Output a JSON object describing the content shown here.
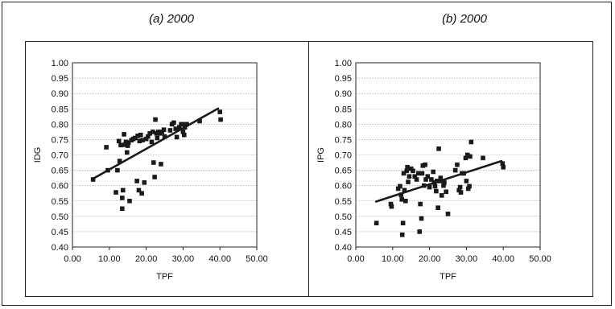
{
  "chart_data": [
    {
      "type": "scatter",
      "title": "(a) 2000",
      "xlabel": "TPF",
      "ylabel": "IDG",
      "xlim": [
        0,
        50
      ],
      "ylim": [
        0.4,
        1.0
      ],
      "xticks": [
        "0.00",
        "10.00",
        "20.00",
        "30.00",
        "40.00",
        "50.00"
      ],
      "yticks": [
        "0.40",
        "0.45",
        "0.50",
        "0.55",
        "0.60",
        "0.65",
        "0.70",
        "0.75",
        "0.80",
        "0.85",
        "0.90",
        "0.95",
        "1.00"
      ],
      "grid": "horizontal",
      "trendline": {
        "x": [
          5.5,
          39.5
        ],
        "y": [
          0.622,
          0.851
        ]
      },
      "points": [
        [
          5.6,
          0.62
        ],
        [
          9.2,
          0.725
        ],
        [
          9.6,
          0.65
        ],
        [
          11.8,
          0.578
        ],
        [
          12.2,
          0.65
        ],
        [
          12.6,
          0.745
        ],
        [
          12.8,
          0.68
        ],
        [
          13.1,
          0.732
        ],
        [
          13.5,
          0.56
        ],
        [
          13.7,
          0.585
        ],
        [
          13.5,
          0.525
        ],
        [
          14.0,
          0.767
        ],
        [
          14.2,
          0.733
        ],
        [
          14.5,
          0.742
        ],
        [
          14.8,
          0.708
        ],
        [
          15.0,
          0.73
        ],
        [
          15.2,
          0.74
        ],
        [
          15.5,
          0.55
        ],
        [
          16.0,
          0.748
        ],
        [
          16.5,
          0.752
        ],
        [
          17.0,
          0.755
        ],
        [
          17.5,
          0.615
        ],
        [
          17.7,
          0.762
        ],
        [
          18.0,
          0.585
        ],
        [
          18.2,
          0.745
        ],
        [
          18.5,
          0.765
        ],
        [
          18.8,
          0.575
        ],
        [
          19.0,
          0.748
        ],
        [
          19.5,
          0.61
        ],
        [
          20.0,
          0.752
        ],
        [
          20.5,
          0.76
        ],
        [
          21.0,
          0.77
        ],
        [
          21.5,
          0.742
        ],
        [
          21.8,
          0.775
        ],
        [
          22.0,
          0.675
        ],
        [
          22.3,
          0.628
        ],
        [
          22.5,
          0.815
        ],
        [
          22.8,
          0.77
        ],
        [
          23.0,
          0.755
        ],
        [
          23.3,
          0.775
        ],
        [
          23.8,
          0.77
        ],
        [
          24.0,
          0.67
        ],
        [
          24.3,
          0.775
        ],
        [
          24.8,
          0.782
        ],
        [
          25.0,
          0.76
        ],
        [
          26.5,
          0.78
        ],
        [
          27.0,
          0.8
        ],
        [
          27.5,
          0.805
        ],
        [
          28.0,
          0.785
        ],
        [
          28.3,
          0.758
        ],
        [
          29.0,
          0.79
        ],
        [
          29.5,
          0.8
        ],
        [
          29.8,
          0.8
        ],
        [
          30.0,
          0.775
        ],
        [
          30.3,
          0.765
        ],
        [
          30.5,
          0.79
        ],
        [
          31.0,
          0.8
        ],
        [
          34.5,
          0.81
        ],
        [
          40.0,
          0.84
        ],
        [
          40.2,
          0.815
        ]
      ]
    },
    {
      "type": "scatter",
      "title": "(b) 2000",
      "xlabel": "TPF",
      "ylabel": "IPG",
      "xlim": [
        0,
        50
      ],
      "ylim": [
        0.4,
        1.0
      ],
      "xticks": [
        "0.00",
        "10.00",
        "20.00",
        "30.00",
        "40.00",
        "50.00"
      ],
      "yticks": [
        "0.40",
        "0.45",
        "0.50",
        "0.55",
        "0.60",
        "0.65",
        "0.70",
        "0.75",
        "0.80",
        "0.85",
        "0.90",
        "0.95",
        "1.00"
      ],
      "grid": "horizontal",
      "trendline": {
        "x": [
          5.5,
          39.5
        ],
        "y": [
          0.548,
          0.68
        ]
      },
      "points": [
        [
          5.6,
          0.478
        ],
        [
          9.5,
          0.54
        ],
        [
          9.7,
          0.532
        ],
        [
          11.5,
          0.59
        ],
        [
          12.0,
          0.598
        ],
        [
          12.3,
          0.57
        ],
        [
          12.5,
          0.555
        ],
        [
          12.6,
          0.44
        ],
        [
          12.8,
          0.478
        ],
        [
          13.0,
          0.64
        ],
        [
          13.2,
          0.585
        ],
        [
          13.5,
          0.55
        ],
        [
          13.8,
          0.648
        ],
        [
          14.0,
          0.66
        ],
        [
          14.2,
          0.612
        ],
        [
          14.5,
          0.63
        ],
        [
          15.0,
          0.655
        ],
        [
          15.5,
          0.648
        ],
        [
          16.0,
          0.63
        ],
        [
          16.5,
          0.62
        ],
        [
          17.0,
          0.64
        ],
        [
          17.3,
          0.45
        ],
        [
          17.5,
          0.54
        ],
        [
          17.8,
          0.493
        ],
        [
          18.0,
          0.64
        ],
        [
          18.2,
          0.665
        ],
        [
          18.5,
          0.6
        ],
        [
          18.8,
          0.668
        ],
        [
          19.0,
          0.62
        ],
        [
          19.5,
          0.63
        ],
        [
          20.0,
          0.595
        ],
        [
          20.5,
          0.62
        ],
        [
          21.0,
          0.645
        ],
        [
          21.3,
          0.61
        ],
        [
          21.5,
          0.598
        ],
        [
          21.8,
          0.582
        ],
        [
          22.0,
          0.615
        ],
        [
          22.3,
          0.528
        ],
        [
          22.5,
          0.72
        ],
        [
          22.8,
          0.615
        ],
        [
          23.0,
          0.625
        ],
        [
          23.3,
          0.568
        ],
        [
          23.8,
          0.6
        ],
        [
          24.0,
          0.61
        ],
        [
          24.5,
          0.58
        ],
        [
          25.0,
          0.508
        ],
        [
          27.0,
          0.65
        ],
        [
          27.5,
          0.668
        ],
        [
          28.0,
          0.585
        ],
        [
          28.3,
          0.595
        ],
        [
          28.5,
          0.578
        ],
        [
          28.8,
          0.64
        ],
        [
          29.3,
          0.64
        ],
        [
          29.8,
          0.69
        ],
        [
          30.0,
          0.615
        ],
        [
          30.3,
          0.7
        ],
        [
          30.5,
          0.59
        ],
        [
          30.8,
          0.598
        ],
        [
          31.0,
          0.695
        ],
        [
          31.3,
          0.742
        ],
        [
          34.5,
          0.69
        ],
        [
          39.8,
          0.672
        ],
        [
          40.0,
          0.66
        ]
      ]
    }
  ]
}
